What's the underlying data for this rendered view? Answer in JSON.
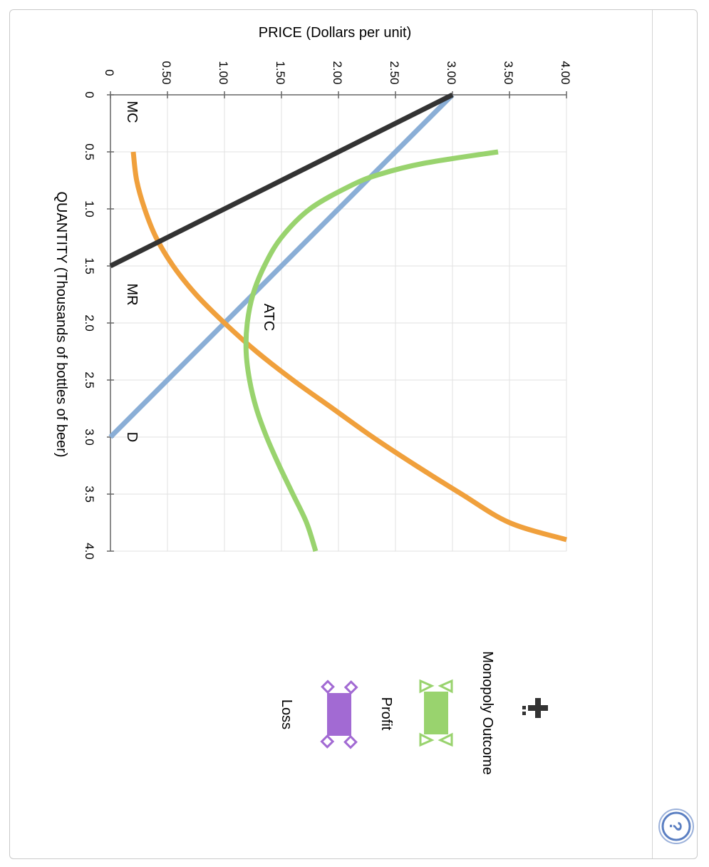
{
  "chart_data": {
    "type": "line",
    "orientation": "rotated-90-clockwise",
    "ylabel": "PRICE (Dollars per unit)",
    "xlabel": "QUANTITY (Thousands of bottles of beer)",
    "y_ticks": [
      "0",
      "0.50",
      "1.00",
      "1.50",
      "2.00",
      "2.50",
      "3.00",
      "3.50",
      "4.00"
    ],
    "x_ticks": [
      "0",
      "0.5",
      "1.0",
      "1.5",
      "2.0",
      "2.5",
      "3.0",
      "3.5",
      "4.0"
    ],
    "xlim": [
      0,
      4
    ],
    "ylim": [
      0,
      4
    ],
    "grid": true,
    "series": [
      {
        "name": "D",
        "color": "#8aaed6",
        "points": [
          [
            0,
            3.0
          ],
          [
            3.0,
            0
          ]
        ]
      },
      {
        "name": "MR",
        "color": "#333333",
        "points": [
          [
            0,
            3.0
          ],
          [
            1.5,
            0
          ]
        ]
      },
      {
        "name": "MC",
        "color": "#f0a03c",
        "points": [
          [
            0.5,
            0.2
          ],
          [
            0.75,
            0.23
          ],
          [
            1.0,
            0.3
          ],
          [
            1.25,
            0.4
          ],
          [
            1.5,
            0.55
          ],
          [
            1.75,
            0.75
          ],
          [
            2.0,
            1.0
          ],
          [
            2.25,
            1.28
          ],
          [
            2.5,
            1.6
          ],
          [
            2.75,
            1.95
          ],
          [
            3.0,
            2.3
          ],
          [
            3.25,
            2.68
          ],
          [
            3.5,
            3.08
          ],
          [
            3.75,
            3.5
          ],
          [
            3.9,
            4.0
          ]
        ]
      },
      {
        "name": "ATC",
        "color": "#99d36e",
        "points": [
          [
            0.5,
            3.4
          ],
          [
            0.6,
            2.75
          ],
          [
            0.7,
            2.35
          ],
          [
            0.8,
            2.1
          ],
          [
            1.0,
            1.75
          ],
          [
            1.25,
            1.5
          ],
          [
            1.5,
            1.35
          ],
          [
            1.75,
            1.25
          ],
          [
            2.0,
            1.2
          ],
          [
            2.25,
            1.19
          ],
          [
            2.5,
            1.22
          ],
          [
            2.75,
            1.28
          ],
          [
            3.0,
            1.37
          ],
          [
            3.25,
            1.48
          ],
          [
            3.5,
            1.6
          ],
          [
            3.75,
            1.72
          ],
          [
            4.0,
            1.8
          ]
        ]
      }
    ],
    "curve_labels": [
      {
        "text": "MC",
        "x": 0.15,
        "y": 0.15
      },
      {
        "text": "MR",
        "x": 1.75,
        "y": 0.15
      },
      {
        "text": "ATC",
        "x": 1.95,
        "y": 1.35
      },
      {
        "text": "D",
        "x": 3.0,
        "y": 0.15
      }
    ]
  },
  "palette": {
    "title": "Monopoly Outcome",
    "tool_icon": "crosshair-move-icon",
    "items": [
      {
        "label": "Profit",
        "color": "#99d36e",
        "shape": "green-rectangle-triangle-handles"
      },
      {
        "label": "Loss",
        "color": "#a26ad3",
        "shape": "purple-rectangle-diamond-handles"
      }
    ]
  },
  "help": {
    "icon": "help-question-icon",
    "label": "?"
  },
  "colors": {
    "grid": "#e2e2e2",
    "axis": "#666666",
    "help": "#5b7fc2"
  }
}
